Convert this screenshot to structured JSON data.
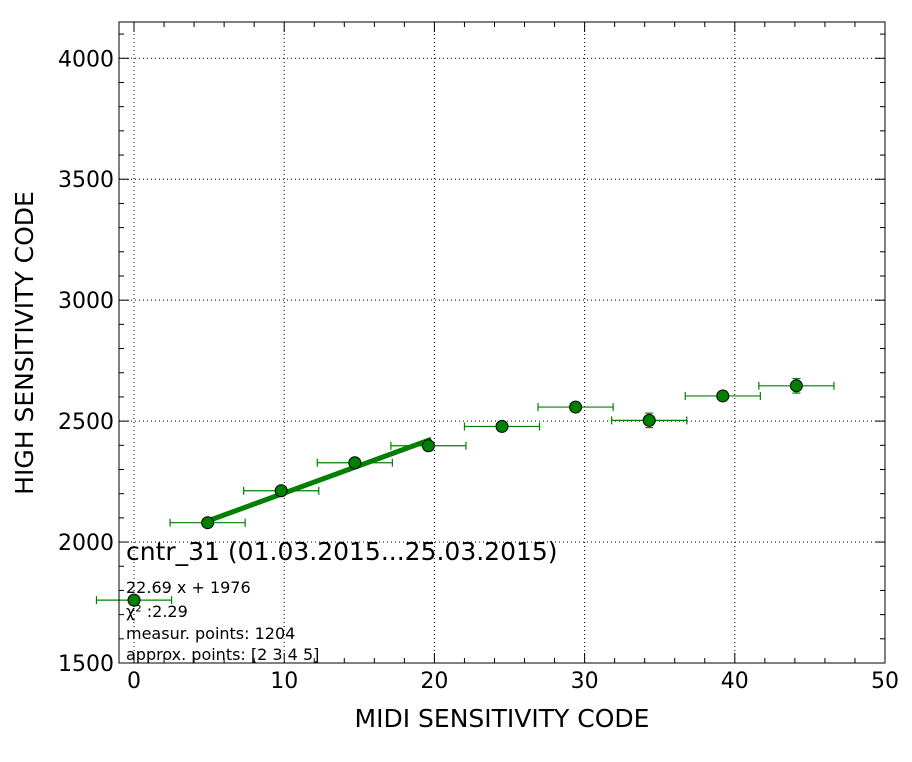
{
  "chart_data": {
    "type": "scatter",
    "title": "cntr_31 (01.03.2015...25.03.2015)",
    "xlabel": "MIDI SENSITIVITY CODE",
    "ylabel": "HIGH SENSITIVITY CODE",
    "xlim": [
      -1,
      50
    ],
    "ylim": [
      1500,
      4150
    ],
    "xticks": [
      0,
      10,
      20,
      30,
      40,
      50
    ],
    "yticks": [
      1500,
      2000,
      2500,
      3000,
      3500,
      4000
    ],
    "xtick_labels": [
      "0",
      "10",
      "20",
      "30",
      "40",
      "50"
    ],
    "ytick_labels": [
      "1500",
      "2000",
      "2500",
      "3000",
      "3500",
      "4000"
    ],
    "grid": true,
    "colors": {
      "points": "#008000",
      "fit": "#008000",
      "edge": "#000000"
    },
    "series": [
      {
        "kind": "points_with_errorbars",
        "points": [
          {
            "x": 0,
            "y": 1760,
            "xerr": 2.5,
            "yerr": 15
          },
          {
            "x": 4.9,
            "y": 2080,
            "xerr": 2.5,
            "yerr": 15
          },
          {
            "x": 9.8,
            "y": 2212,
            "xerr": 2.5,
            "yerr": 15
          },
          {
            "x": 14.7,
            "y": 2328,
            "xerr": 2.5,
            "yerr": 15
          },
          {
            "x": 19.6,
            "y": 2398,
            "xerr": 2.5,
            "yerr": 15
          },
          {
            "x": 24.5,
            "y": 2478,
            "xerr": 2.5,
            "yerr": 20
          },
          {
            "x": 29.4,
            "y": 2558,
            "xerr": 2.5,
            "yerr": 20
          },
          {
            "x": 34.3,
            "y": 2503,
            "xerr": 2.5,
            "yerr": 30
          },
          {
            "x": 39.2,
            "y": 2604,
            "xerr": 2.5,
            "yerr": 20
          },
          {
            "x": 44.1,
            "y": 2646,
            "xerr": 2.5,
            "yerr": 30
          }
        ]
      },
      {
        "kind": "fit_line",
        "x": [
          4.9,
          19.8
        ],
        "y": [
          2087,
          2425
        ]
      }
    ],
    "annotations": [
      "22.69 x + 1976",
      "χ² :2.29",
      "measur. points: 1204",
      "approx. points: [2 3 4 5]"
    ]
  }
}
